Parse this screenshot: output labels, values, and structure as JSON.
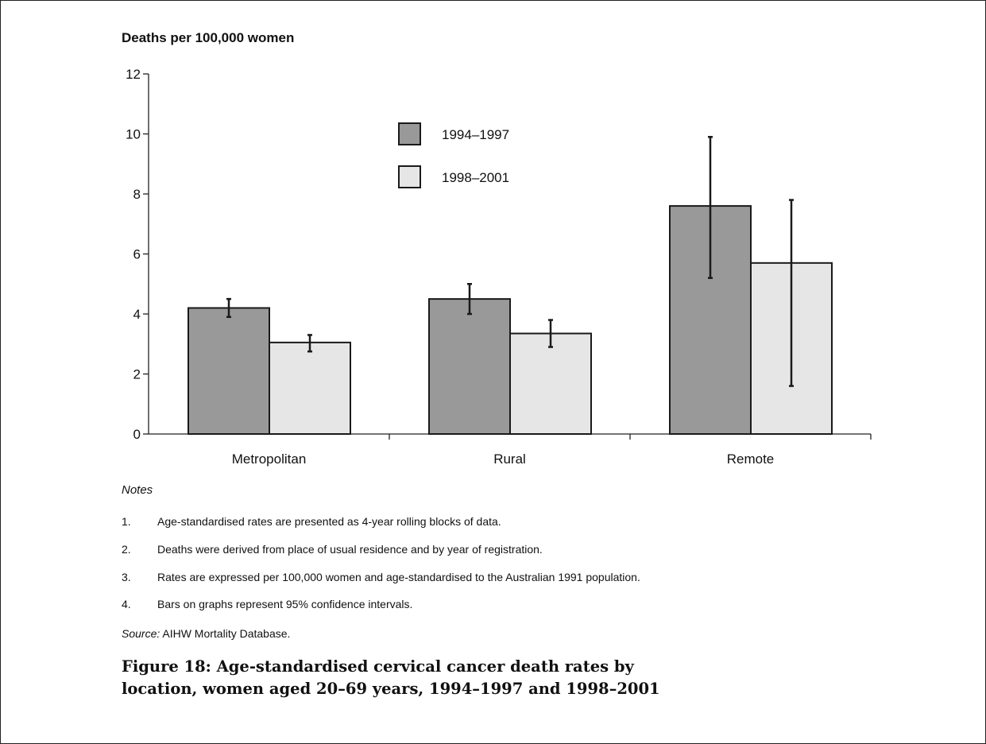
{
  "chart_data": {
    "type": "bar",
    "ylabel": "Deaths per 100,000 women",
    "ylim": [
      0,
      12
    ],
    "yticks": [
      0,
      2,
      4,
      6,
      8,
      10,
      12
    ],
    "categories": [
      "Metropolitan",
      "Rural",
      "Remote"
    ],
    "legend_position": "top-center",
    "series": [
      {
        "name": "1994–1997",
        "color": "#999999",
        "values": [
          4.2,
          4.5,
          7.6
        ],
        "ci_low": [
          3.9,
          4.0,
          5.2
        ],
        "ci_high": [
          4.5,
          5.0,
          9.9
        ]
      },
      {
        "name": "1998–2001",
        "color": "#e6e6e6",
        "values": [
          3.05,
          3.35,
          5.7
        ],
        "ci_low": [
          2.75,
          2.9,
          1.6
        ],
        "ci_high": [
          3.3,
          3.8,
          7.8
        ]
      }
    ]
  },
  "notes": {
    "title": "Notes",
    "items": [
      {
        "num": "1.",
        "text": "Age-standardised rates are presented as 4-year rolling blocks of data."
      },
      {
        "num": "2.",
        "text": "Deaths were derived from place of usual residence and by year of registration."
      },
      {
        "num": "3.",
        "text": "Rates are expressed per 100,000 women and age-standardised to the Australian 1991 population."
      },
      {
        "num": "4.",
        "text": "Bars on graphs represent 95% confidence intervals."
      }
    ]
  },
  "source": {
    "label": "Source:",
    "text": " AIHW Mortality Database."
  },
  "figure_title": "Figure 18: Age-standardised cervical cancer death rates by location, women aged 20–69 years, 1994–1997 and 1998–2001"
}
